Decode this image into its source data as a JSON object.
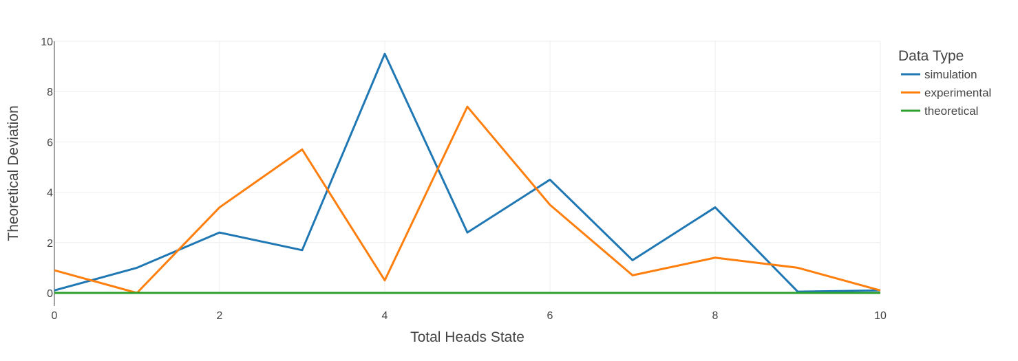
{
  "chart_data": {
    "type": "line",
    "xlabel": "Total Heads State",
    "ylabel": "Theoretical Deviation",
    "xlim": [
      0,
      10
    ],
    "ylim": [
      0,
      10
    ],
    "x_ticks": [
      "0",
      "2",
      "4",
      "6",
      "8",
      "10"
    ],
    "y_ticks": [
      "0",
      "2",
      "4",
      "6",
      "8",
      "10"
    ],
    "grid": true,
    "legend_title": "Data Type",
    "legend_position": "top-right",
    "x": [
      0,
      1,
      2,
      3,
      4,
      5,
      6,
      7,
      8,
      9,
      10
    ],
    "series": [
      {
        "name": "simulation",
        "color": "#1f77b4",
        "values": [
          0.1,
          1.0,
          2.4,
          1.7,
          9.5,
          2.4,
          4.5,
          1.3,
          3.4,
          0.05,
          0.1
        ]
      },
      {
        "name": "experimental",
        "color": "#ff7f0e",
        "values": [
          0.9,
          0.0,
          3.4,
          5.7,
          0.5,
          7.4,
          3.5,
          0.7,
          1.4,
          1.0,
          0.1
        ]
      },
      {
        "name": "theoretical",
        "color": "#2ca02c",
        "values": [
          0,
          0,
          0,
          0,
          0,
          0,
          0,
          0,
          0,
          0,
          0
        ]
      }
    ]
  }
}
